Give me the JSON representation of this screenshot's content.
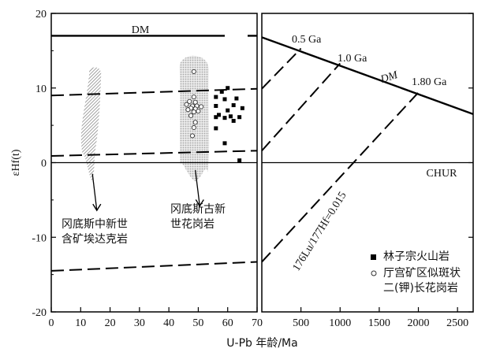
{
  "chart_data": {
    "type": "scatter",
    "ylabel": "εHf(t)",
    "xlabel": "U-Pb 年龄/Ma",
    "ylim": [
      -20,
      20
    ],
    "panels": [
      {
        "id": "left",
        "xlim": [
          0,
          70
        ],
        "xticks": [
          0,
          10,
          20,
          30,
          40,
          50,
          60,
          70
        ],
        "lines": [
          {
            "name": "DM",
            "style": "solid",
            "points": [
              [
                0,
                17
              ],
              [
                59,
                17
              ]
            ]
          },
          {
            "style": "dashed",
            "points": [
              [
                0,
                9
              ],
              [
                70,
                9.9
              ]
            ]
          },
          {
            "style": "dashed",
            "points": [
              [
                0,
                0.9
              ],
              [
                70,
                1.6
              ]
            ]
          },
          {
            "style": "dashed",
            "points": [
              [
                0,
                -14.5
              ],
              [
                70,
                -13.3
              ]
            ]
          },
          {
            "style": "solid",
            "points": [
              [
                0,
                0
              ],
              [
                70,
                0
              ]
            ]
          }
        ],
        "fields": [
          {
            "name": "冈底斯中新世含矿埃达克岩",
            "x_center": 14,
            "y_range": [
              -2.5,
              13
            ],
            "pattern": "hatched"
          },
          {
            "name": "冈底斯古新世花岗岩",
            "x_center": 49,
            "y_range": [
              -2.5,
              14.5
            ],
            "pattern": "dotted"
          }
        ],
        "series": [
          {
            "name": "林子宗火山岩",
            "marker": "filled-square",
            "points": [
              [
                56,
                8.8
              ],
              [
                56,
                7.6
              ],
              [
                56,
                6.1
              ],
              [
                56,
                4.6
              ],
              [
                57,
                6.4
              ],
              [
                58,
                9.5
              ],
              [
                59,
                8.5
              ],
              [
                59,
                6.0
              ],
              [
                59,
                2.6
              ],
              [
                60,
                10.0
              ],
              [
                60,
                7.0
              ],
              [
                61,
                6.2
              ],
              [
                62,
                7.7
              ],
              [
                62,
                5.6
              ],
              [
                63,
                8.6
              ],
              [
                64,
                6.1
              ],
              [
                64,
                0.3
              ],
              [
                65,
                7.3
              ]
            ]
          },
          {
            "name": "厅宫矿区似斑状二(钾)长花岗岩",
            "marker": "open-circle",
            "points": [
              [
                48.5,
                12.2
              ],
              [
                48.5,
                8.8
              ],
              [
                47,
                8.2
              ],
              [
                49,
                8.1
              ],
              [
                46,
                7.8
              ],
              [
                48,
                7.6
              ],
              [
                49.5,
                7.6
              ],
              [
                51,
                7.5
              ],
              [
                47.5,
                7.3
              ],
              [
                49,
                7.2
              ],
              [
                46.5,
                7.1
              ],
              [
                50,
                6.9
              ],
              [
                48.5,
                6.8
              ],
              [
                47.5,
                6.3
              ],
              [
                49,
                5.4
              ],
              [
                48.5,
                4.7
              ],
              [
                48,
                3.6
              ]
            ]
          }
        ]
      },
      {
        "id": "right",
        "xlim": [
          0,
          2700
        ],
        "xticks": [
          500,
          1000,
          1500,
          2000,
          2500
        ],
        "lines": [
          {
            "name": "DM",
            "style": "solid",
            "points": [
              [
                0,
                16.8
              ],
              [
                2700,
                6.5
              ]
            ]
          },
          {
            "name": "0.5 Ga",
            "style": "dashed",
            "points": [
              [
                0,
                9.9
              ],
              [
                500,
                15.3
              ]
            ]
          },
          {
            "name": "1.0 Ga",
            "style": "dashed",
            "points": [
              [
                0,
                1.6
              ],
              [
                1000,
                13.3
              ]
            ]
          },
          {
            "name": "1.80 Ga",
            "style": "dashed",
            "points": [
              [
                0,
                -13.3
              ],
              [
                2000,
                9.4
              ]
            ]
          },
          {
            "name": "CHUR",
            "style": "solid",
            "points": [
              [
                0,
                0
              ],
              [
                2700,
                0
              ]
            ]
          }
        ]
      }
    ],
    "annotations": {
      "dm_left": "DM",
      "dm_right": "DM",
      "chur": "CHUR",
      "line_05": "0.5 Ga",
      "line_10": "1.0 Ga",
      "line_18": "1.80 Ga",
      "lu_hf": "176Lu/177Hf=0.015",
      "field_adakite": [
        "冈底斯中新世",
        "含矿埃达克岩"
      ],
      "field_granite": [
        "冈底斯古新",
        "世花岗岩"
      ]
    },
    "legend": {
      "placement": "bottom-right",
      "entries": [
        {
          "marker": "filled-square",
          "lines": [
            "林子宗火山岩"
          ]
        },
        {
          "marker": "open-circle",
          "lines": [
            "厅宫矿区似斑状",
            "二(钾)长花岗岩"
          ]
        }
      ]
    }
  }
}
